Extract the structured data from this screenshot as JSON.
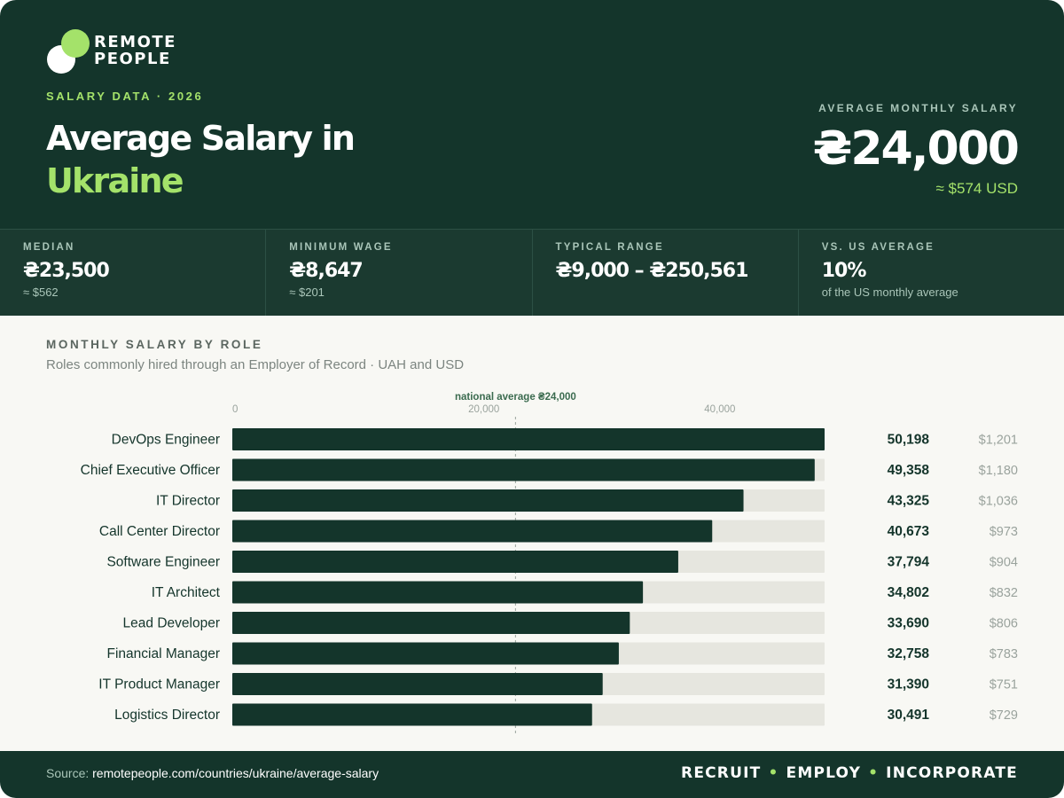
{
  "brand": {
    "line1": "REMOTE",
    "line2": "PEOPLE",
    "accent_color": "#a4e26a",
    "dark_color": "#14352b"
  },
  "header": {
    "eyebrow": "SALARY DATA · 2026",
    "title_line1": "Average Salary in",
    "title_line2": "Ukraine",
    "avg_label": "AVERAGE MONTHLY SALARY",
    "avg_value": "₴24,000",
    "avg_usd": "≈ $574 USD"
  },
  "stats": [
    {
      "label": "MEDIAN",
      "value": "₴23,500",
      "sub": "≈ $562"
    },
    {
      "label": "MINIMUM WAGE",
      "value": "₴8,647",
      "sub": "≈ $201"
    },
    {
      "label": "TYPICAL RANGE",
      "value": "₴9,000 – ₴250,561",
      "sub": ""
    },
    {
      "label": "VS. US AVERAGE",
      "value": "10%",
      "sub": "of the US monthly average"
    }
  ],
  "section": {
    "title": "MONTHLY SALARY BY ROLE",
    "subtitle": "Roles commonly hired through an Employer of Record · UAH and USD"
  },
  "chart_data": {
    "type": "bar",
    "orientation": "horizontal",
    "categories": [
      "DevOps Engineer",
      "Chief Executive Officer",
      "IT Director",
      "Call Center Director",
      "Software Engineer",
      "IT Architect",
      "Lead Developer",
      "Financial Manager",
      "IT Product Manager",
      "Logistics Director"
    ],
    "values": [
      50198,
      49358,
      43325,
      40673,
      37794,
      34802,
      33690,
      32758,
      31390,
      30491
    ],
    "value_labels": [
      "50,198",
      "49,358",
      "43,325",
      "40,673",
      "37,794",
      "34,802",
      "33,690",
      "32,758",
      "31,390",
      "30,491"
    ],
    "usd_labels": [
      "$1,201",
      "$1,180",
      "$1,036",
      "$973",
      "$904",
      "$832",
      "$806",
      "$783",
      "$751",
      "$729"
    ],
    "ticks": [
      0,
      20000,
      40000
    ],
    "tick_labels": [
      "0",
      "20,000",
      "40,000"
    ],
    "xlim": [
      0,
      50198
    ],
    "reference_line": {
      "value": 24000,
      "label": "national average ₴24,000"
    },
    "bar_color": "#14352b",
    "track_color": "#e6e6df",
    "grid": false,
    "legend": "none"
  },
  "footer": {
    "source_label": "Source:",
    "source_url": "remotepeople.com/countries/ukraine/average-salary",
    "tagline": [
      "RECRUIT",
      "EMPLOY",
      "INCORPORATE"
    ]
  }
}
